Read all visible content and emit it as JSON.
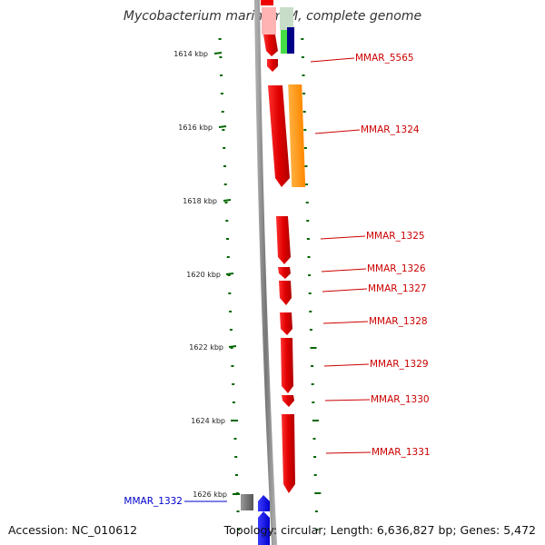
{
  "title": "Mycobacterium marinum M, complete genome",
  "accession": "Accession: NC_010612",
  "topology": "Topology: circular; Length: 6,636,827 bp; Genes: 5,472",
  "scale_labels": [
    "1614 kbp",
    "1616 kbp",
    "1618 kbp",
    "1620 kbp",
    "1622 kbp",
    "1624 kbp",
    "1626 kbp"
  ],
  "gene_labels": [
    {
      "text": "MMAR_5565",
      "color": "#cc0000"
    },
    {
      "text": "MMAR_1324",
      "color": "#cc0000"
    },
    {
      "text": "MMAR_1325",
      "color": "#cc0000"
    },
    {
      "text": "MMAR_1326",
      "color": "#cc0000"
    },
    {
      "text": "MMAR_1327",
      "color": "#cc0000"
    },
    {
      "text": "MMAR_1328",
      "color": "#cc0000"
    },
    {
      "text": "MMAR_1329",
      "color": "#cc0000"
    },
    {
      "text": "MMAR_1330",
      "color": "#cc0000"
    },
    {
      "text": "MMAR_1331",
      "color": "#cc0000"
    },
    {
      "text": "MMAR_1332",
      "color": "#0000cc"
    }
  ],
  "colors": {
    "forward_gene": "#ee0000",
    "reverse_gene": "#0000ee",
    "orange_feature": "#ff8c00",
    "backbone": "#888888",
    "tick": "#006600"
  }
}
